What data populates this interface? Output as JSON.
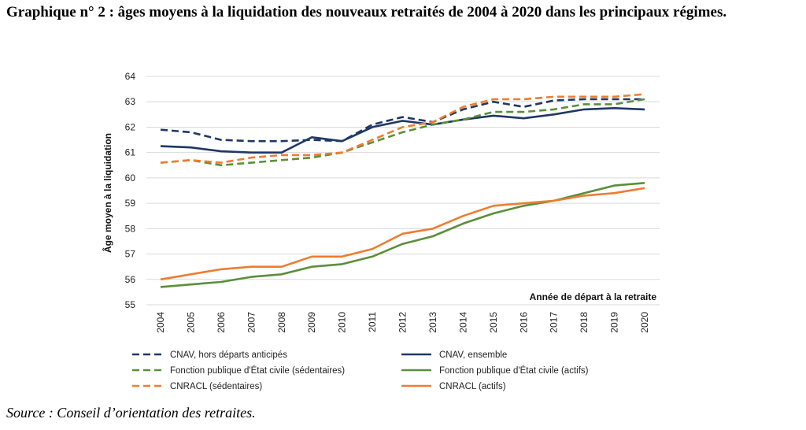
{
  "heading": "Graphique n° 2 : âges moyens à la liquidation des nouveaux retraités de 2004 à 2020 dans les principaux régimes.",
  "source": "Source : Conseil d’orientation des retraites.",
  "chart_data": {
    "type": "line",
    "xlabel": "Année de départ à la retraite",
    "ylabel": "Âge moyen à la liquidation",
    "ylim": [
      55,
      64
    ],
    "yticks": [
      "55",
      "56",
      "57",
      "58",
      "59",
      "60",
      "61",
      "62",
      "63",
      "64"
    ],
    "grid": true,
    "legend_position": "bottom",
    "x": [
      "2004",
      "2005",
      "2006",
      "2007",
      "2008",
      "2009",
      "2010",
      "2011",
      "2012",
      "2013",
      "2014",
      "2015",
      "2016",
      "2017",
      "2018",
      "2019",
      "2020"
    ],
    "series": [
      {
        "name": "CNAV, hors départs anticipés",
        "color": "#1f3864",
        "dashed": true,
        "values": [
          61.9,
          61.8,
          61.5,
          61.45,
          61.45,
          61.5,
          61.45,
          62.1,
          62.4,
          62.2,
          62.7,
          63.0,
          62.8,
          63.05,
          63.1,
          63.1,
          63.1
        ]
      },
      {
        "name": "CNAV, ensemble",
        "color": "#1f3864",
        "dashed": false,
        "values": [
          61.25,
          61.2,
          61.05,
          61.0,
          61.0,
          61.6,
          61.45,
          62.0,
          62.25,
          62.1,
          62.3,
          62.45,
          62.35,
          62.5,
          62.7,
          62.75,
          62.7
        ]
      },
      {
        "name": "Fonction publique d'État civile (sédentaires)",
        "color": "#5a8f3a",
        "dashed": true,
        "values": [
          60.6,
          60.7,
          60.5,
          60.6,
          60.7,
          60.8,
          61.0,
          61.4,
          61.8,
          62.1,
          62.3,
          62.6,
          62.6,
          62.7,
          62.9,
          62.9,
          63.1
        ]
      },
      {
        "name": "Fonction publique d'État civile (actifs)",
        "color": "#5a8f3a",
        "dashed": false,
        "values": [
          55.7,
          55.8,
          55.9,
          56.1,
          56.2,
          56.5,
          56.6,
          56.9,
          57.4,
          57.7,
          58.2,
          58.6,
          58.9,
          59.1,
          59.4,
          59.7,
          59.8
        ]
      },
      {
        "name": "CNRACL (sédentaires)",
        "color": "#ed7d31",
        "dashed": true,
        "values": [
          60.6,
          60.7,
          60.6,
          60.8,
          60.9,
          60.9,
          61.0,
          61.5,
          62.0,
          62.2,
          62.8,
          63.1,
          63.1,
          63.2,
          63.2,
          63.2,
          63.3
        ]
      },
      {
        "name": "CNRACL (actifs)",
        "color": "#ed7d31",
        "dashed": false,
        "values": [
          56.0,
          56.2,
          56.4,
          56.5,
          56.5,
          56.9,
          56.9,
          57.2,
          57.8,
          58.0,
          58.5,
          58.9,
          59.0,
          59.1,
          59.3,
          59.4,
          59.6
        ]
      }
    ]
  }
}
